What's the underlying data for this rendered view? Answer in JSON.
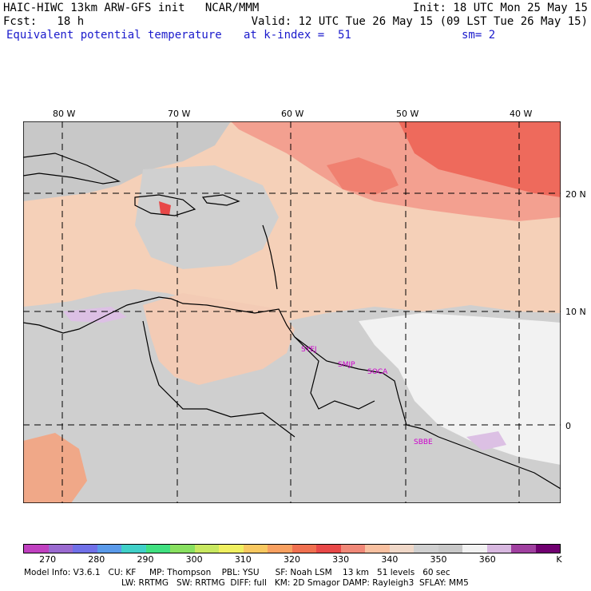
{
  "header": {
    "line1_left": "HAIC-HIWC 13km ARW-GFS init   NCAR/MMM",
    "line1_right": "Init: 18 UTC Mon 25 May 15",
    "line2_left": "Fcst:   18 h",
    "line2_right": "Valid: 12 UTC Tue 26 May 15 (09 LST Tue 26 May 15)",
    "field_name": "Equivalent potential temperature",
    "level": "at k-index =  51",
    "smoothing": "sm= 2"
  },
  "map": {
    "lon_labels": [
      "80 W",
      "70 W",
      "60 W",
      "50 W",
      "40 W"
    ],
    "lat_labels": [
      "20 N",
      "10 N",
      "0"
    ],
    "stations": [
      "SYEJ",
      "SMJP",
      "SOCA",
      "SBBE"
    ]
  },
  "colorbar": {
    "colors": [
      "#c040c0",
      "#9a6ad0",
      "#7070e8",
      "#5a9aea",
      "#40d0c8",
      "#40e080",
      "#88e060",
      "#c8e860",
      "#f0f060",
      "#f8c860",
      "#f8a060",
      "#f07050",
      "#e84848",
      "#f08878",
      "#f8c0a0",
      "#f0d8c8",
      "#d0d0d0",
      "#c8c8c8",
      "#f2f2f2",
      "#d8b8e0",
      "#a040a0",
      "#700070"
    ],
    "tick_labels": [
      "270",
      "280",
      "290",
      "300",
      "310",
      "320",
      "330",
      "340",
      "350",
      "360",
      "K"
    ]
  },
  "footer": {
    "line1": "Model Info: V3.6.1   CU: KF     MP: Thompson    PBL: YSU      SF: Noah LSM    13 km   51 levels   60 sec",
    "line2": "LW: RRTMG   SW: RRTMG  DIFF: full   KM: 2D Smagor DAMP: Rayleigh3  SFLAY: MM5"
  }
}
